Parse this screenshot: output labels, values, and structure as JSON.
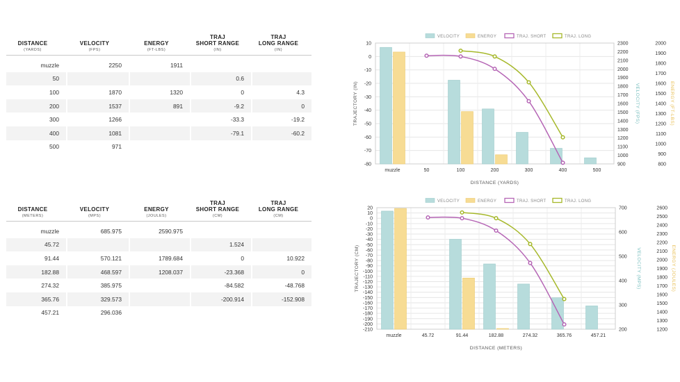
{
  "tables": [
    {
      "headers": [
        {
          "title": "DISTANCE",
          "unit": "(YARDS)"
        },
        {
          "title": "VELOCITY",
          "unit": "(FPS)"
        },
        {
          "title": "ENERGY",
          "unit": "(FT-LBS)"
        },
        {
          "title": "TRAJ\nSHORT RANGE",
          "unit": "(IN)"
        },
        {
          "title": "TRAJ\nLONG RANGE",
          "unit": "(IN)"
        }
      ],
      "rows": [
        [
          "muzzle",
          "2250",
          "1911",
          "",
          ""
        ],
        [
          "50",
          "",
          "",
          "0.6",
          ""
        ],
        [
          "100",
          "1870",
          "1320",
          "0",
          "4.3"
        ],
        [
          "200",
          "1537",
          "891",
          "-9.2",
          "0"
        ],
        [
          "300",
          "1266",
          "",
          "-33.3",
          "-19.2"
        ],
        [
          "400",
          "1081",
          "",
          "-79.1",
          "-60.2"
        ],
        [
          "500",
          "971",
          "",
          "",
          ""
        ]
      ]
    },
    {
      "headers": [
        {
          "title": "DISTANCE",
          "unit": "(METERS)"
        },
        {
          "title": "VELOCITY",
          "unit": "(MPS)"
        },
        {
          "title": "ENERGY",
          "unit": "(JOULES)"
        },
        {
          "title": "TRAJ\nSHORT RANGE",
          "unit": "(CM)"
        },
        {
          "title": "TRAJ\nLONG RANGE",
          "unit": "(CM)"
        }
      ],
      "rows": [
        [
          "muzzle",
          "685.975",
          "2590.975",
          "",
          ""
        ],
        [
          "45.72",
          "",
          "",
          "1.524",
          ""
        ],
        [
          "91.44",
          "570.121",
          "1789.684",
          "0",
          "10.922"
        ],
        [
          "182.88",
          "468.597",
          "1208.037",
          "-23.368",
          "0"
        ],
        [
          "274.32",
          "385.975",
          "",
          "-84.582",
          "-48.768"
        ],
        [
          "365.76",
          "329.573",
          "",
          "-200.914",
          "-152.908"
        ],
        [
          "457.21",
          "296.036",
          "",
          "",
          ""
        ]
      ]
    }
  ],
  "chart_data": [
    {
      "type": "bar",
      "categories": [
        "muzzle",
        "50",
        "100",
        "200",
        "300",
        "400",
        "500"
      ],
      "xlabel": "DISTANCE (YARDS)",
      "ylabel_left": "TRAJECTORY (IN)",
      "ylabel_right1": "VELOCITY (FPS)",
      "ylabel_right2": "ENERGY (FT-LBS)",
      "ylim_left": [
        -80,
        10
      ],
      "ystep_left": 10,
      "ylim_right1": [
        900,
        2300
      ],
      "ystep_right1": 100,
      "ylim_right2": [
        800,
        2000
      ],
      "ystep_right2": 100,
      "legend": [
        "VELOCITY",
        "ENERGY",
        "TRAJ. SHORT",
        "TRAJ. LONG"
      ],
      "legend_position": "top",
      "grid": true,
      "colors": {
        "velocity": "#b7dcdc",
        "energy": "#f7dc94",
        "short": "#b565b5",
        "long": "#a6b82a"
      },
      "velocity": [
        2250,
        null,
        1870,
        1537,
        1266,
        1081,
        971
      ],
      "energy": [
        1911,
        null,
        1320,
        891,
        null,
        null,
        null
      ],
      "traj_short": [
        null,
        0.6,
        0,
        -9.2,
        -33.3,
        -79.1,
        null
      ],
      "traj_long": [
        null,
        null,
        4.3,
        0,
        -19.2,
        -60.2,
        null
      ]
    },
    {
      "type": "bar",
      "categories": [
        "muzzle",
        "45.72",
        "91.44",
        "182.88",
        "274.32",
        "365.76",
        "457.21"
      ],
      "xlabel": "DISTANCE (METERS)",
      "ylabel_left": "TRAJECTORY (CM)",
      "ylabel_right1": "VELOCITY (MPS)",
      "ylabel_right2": "ENERGY (JOULES)",
      "ylim_left": [
        -210,
        20
      ],
      "ystep_left": 10,
      "ylim_right1": [
        200,
        700
      ],
      "ystep_right1": 100,
      "ylim_right2": [
        1200,
        2600
      ],
      "ystep_right2": 100,
      "legend": [
        "VELOCITY",
        "ENERGY",
        "TRAJ. SHORT",
        "TRAJ. LONG"
      ],
      "legend_position": "top",
      "grid": true,
      "colors": {
        "velocity": "#b7dcdc",
        "energy": "#f7dc94",
        "short": "#b565b5",
        "long": "#a6b82a"
      },
      "velocity": [
        685.975,
        null,
        570.121,
        468.597,
        385.975,
        329.573,
        296.036
      ],
      "energy": [
        2590.975,
        null,
        1789.684,
        1208.037,
        null,
        null,
        null
      ],
      "traj_short": [
        null,
        1.524,
        0,
        -23.368,
        -84.582,
        -200.914,
        null
      ],
      "traj_long": [
        null,
        null,
        10.922,
        0,
        -48.768,
        -152.908,
        null
      ]
    }
  ]
}
